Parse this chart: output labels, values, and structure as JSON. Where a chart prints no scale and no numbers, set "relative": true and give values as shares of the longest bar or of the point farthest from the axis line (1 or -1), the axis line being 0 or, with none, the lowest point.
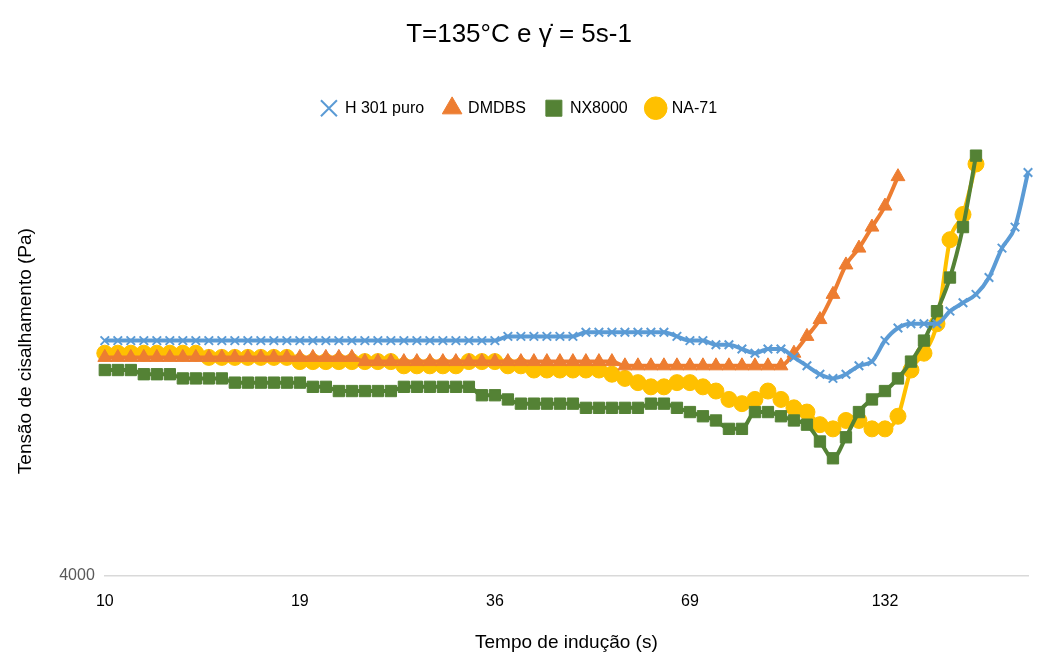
{
  "chart_data": {
    "type": "line",
    "title": "T=135°C e γ̇ = 5s-1",
    "xlabel": "Tempo de indução (s)",
    "ylabel": "Tensão de cisalhamento (Pa)",
    "relative": true,
    "legend": "top",
    "annotations": [
      "4000"
    ],
    "categories": [
      "10",
      null,
      null,
      null,
      null,
      null,
      null,
      null,
      null,
      null,
      null,
      null,
      null,
      null,
      null,
      "19",
      null,
      null,
      null,
      null,
      null,
      null,
      null,
      null,
      null,
      null,
      null,
      null,
      null,
      null,
      "36",
      null,
      null,
      null,
      null,
      null,
      null,
      null,
      null,
      null,
      null,
      null,
      null,
      null,
      null,
      "69",
      null,
      null,
      null,
      null,
      null,
      null,
      null,
      null,
      null,
      null,
      null,
      null,
      null,
      null,
      "132",
      null,
      null,
      null,
      null,
      null,
      null,
      null,
      null,
      null,
      null,
      null
    ],
    "series": [
      {
        "name": "H 301 puro",
        "color": "#5b9bd5",
        "marker": "cross",
        "values": [
          0.56,
          0.56,
          0.56,
          0.56,
          0.56,
          0.56,
          0.56,
          0.56,
          0.56,
          0.56,
          0.56,
          0.56,
          0.56,
          0.56,
          0.56,
          0.56,
          0.56,
          0.56,
          0.56,
          0.56,
          0.56,
          0.56,
          0.56,
          0.56,
          0.56,
          0.56,
          0.56,
          0.56,
          0.56,
          0.56,
          0.56,
          0.57,
          0.57,
          0.57,
          0.57,
          0.57,
          0.57,
          0.58,
          0.58,
          0.58,
          0.58,
          0.58,
          0.58,
          0.58,
          0.57,
          0.56,
          0.56,
          0.55,
          0.55,
          0.54,
          0.53,
          0.54,
          0.54,
          0.52,
          0.5,
          0.48,
          0.47,
          0.48,
          0.5,
          0.51,
          0.56,
          0.59,
          0.6,
          0.6,
          0.6,
          0.63,
          0.65,
          0.67,
          0.71,
          0.78,
          0.83,
          0.96
        ]
      },
      {
        "name": "DMDBS",
        "color": "#ed7d31",
        "marker": "triangle",
        "values": [
          0.52,
          0.52,
          0.52,
          0.52,
          0.52,
          0.52,
          0.52,
          0.52,
          0.52,
          0.52,
          0.52,
          0.52,
          0.52,
          0.52,
          0.52,
          0.52,
          0.52,
          0.52,
          0.52,
          0.52,
          0.51,
          0.51,
          0.51,
          0.51,
          0.51,
          0.51,
          0.51,
          0.51,
          0.51,
          0.51,
          0.51,
          0.51,
          0.51,
          0.51,
          0.51,
          0.51,
          0.51,
          0.51,
          0.51,
          0.51,
          0.5,
          0.5,
          0.5,
          0.5,
          0.5,
          0.5,
          0.5,
          0.5,
          0.5,
          0.5,
          0.5,
          0.5,
          0.5,
          0.53,
          0.57,
          0.61,
          0.67,
          0.74,
          0.78,
          0.83,
          0.88,
          0.95,
          null,
          null,
          null,
          null,
          null,
          null,
          null,
          null,
          null,
          null
        ]
      },
      {
        "name": "NX8000",
        "color": "#548235",
        "marker": "square",
        "values": [
          0.49,
          0.49,
          0.49,
          0.48,
          0.48,
          0.48,
          0.47,
          0.47,
          0.47,
          0.47,
          0.46,
          0.46,
          0.46,
          0.46,
          0.46,
          0.46,
          0.45,
          0.45,
          0.44,
          0.44,
          0.44,
          0.44,
          0.44,
          0.45,
          0.45,
          0.45,
          0.45,
          0.45,
          0.45,
          0.43,
          0.43,
          0.42,
          0.41,
          0.41,
          0.41,
          0.41,
          0.41,
          0.4,
          0.4,
          0.4,
          0.4,
          0.4,
          0.41,
          0.41,
          0.4,
          0.39,
          0.38,
          0.37,
          0.35,
          0.35,
          0.39,
          0.39,
          0.38,
          0.37,
          0.36,
          0.32,
          0.28,
          0.33,
          0.39,
          0.42,
          0.44,
          0.47,
          0.51,
          0.56,
          0.63,
          0.71,
          0.83,
          1.0,
          null,
          null,
          null,
          null
        ]
      },
      {
        "name": "NA-71",
        "color": "#ffc000",
        "marker": "circle",
        "values": [
          0.53,
          0.53,
          0.53,
          0.53,
          0.53,
          0.53,
          0.53,
          0.53,
          0.52,
          0.52,
          0.52,
          0.52,
          0.52,
          0.52,
          0.52,
          0.51,
          0.51,
          0.51,
          0.51,
          0.51,
          0.51,
          0.51,
          0.51,
          0.5,
          0.5,
          0.5,
          0.5,
          0.5,
          0.51,
          0.51,
          0.51,
          0.5,
          0.5,
          0.49,
          0.49,
          0.49,
          0.49,
          0.49,
          0.49,
          0.48,
          0.47,
          0.46,
          0.45,
          0.45,
          0.46,
          0.46,
          0.45,
          0.44,
          0.42,
          0.41,
          0.42,
          0.44,
          0.42,
          0.4,
          0.39,
          0.36,
          0.35,
          0.37,
          0.37,
          0.35,
          0.35,
          0.38,
          0.49,
          0.53,
          0.6,
          0.8,
          0.86,
          0.98,
          null,
          null,
          null,
          null
        ]
      }
    ]
  }
}
